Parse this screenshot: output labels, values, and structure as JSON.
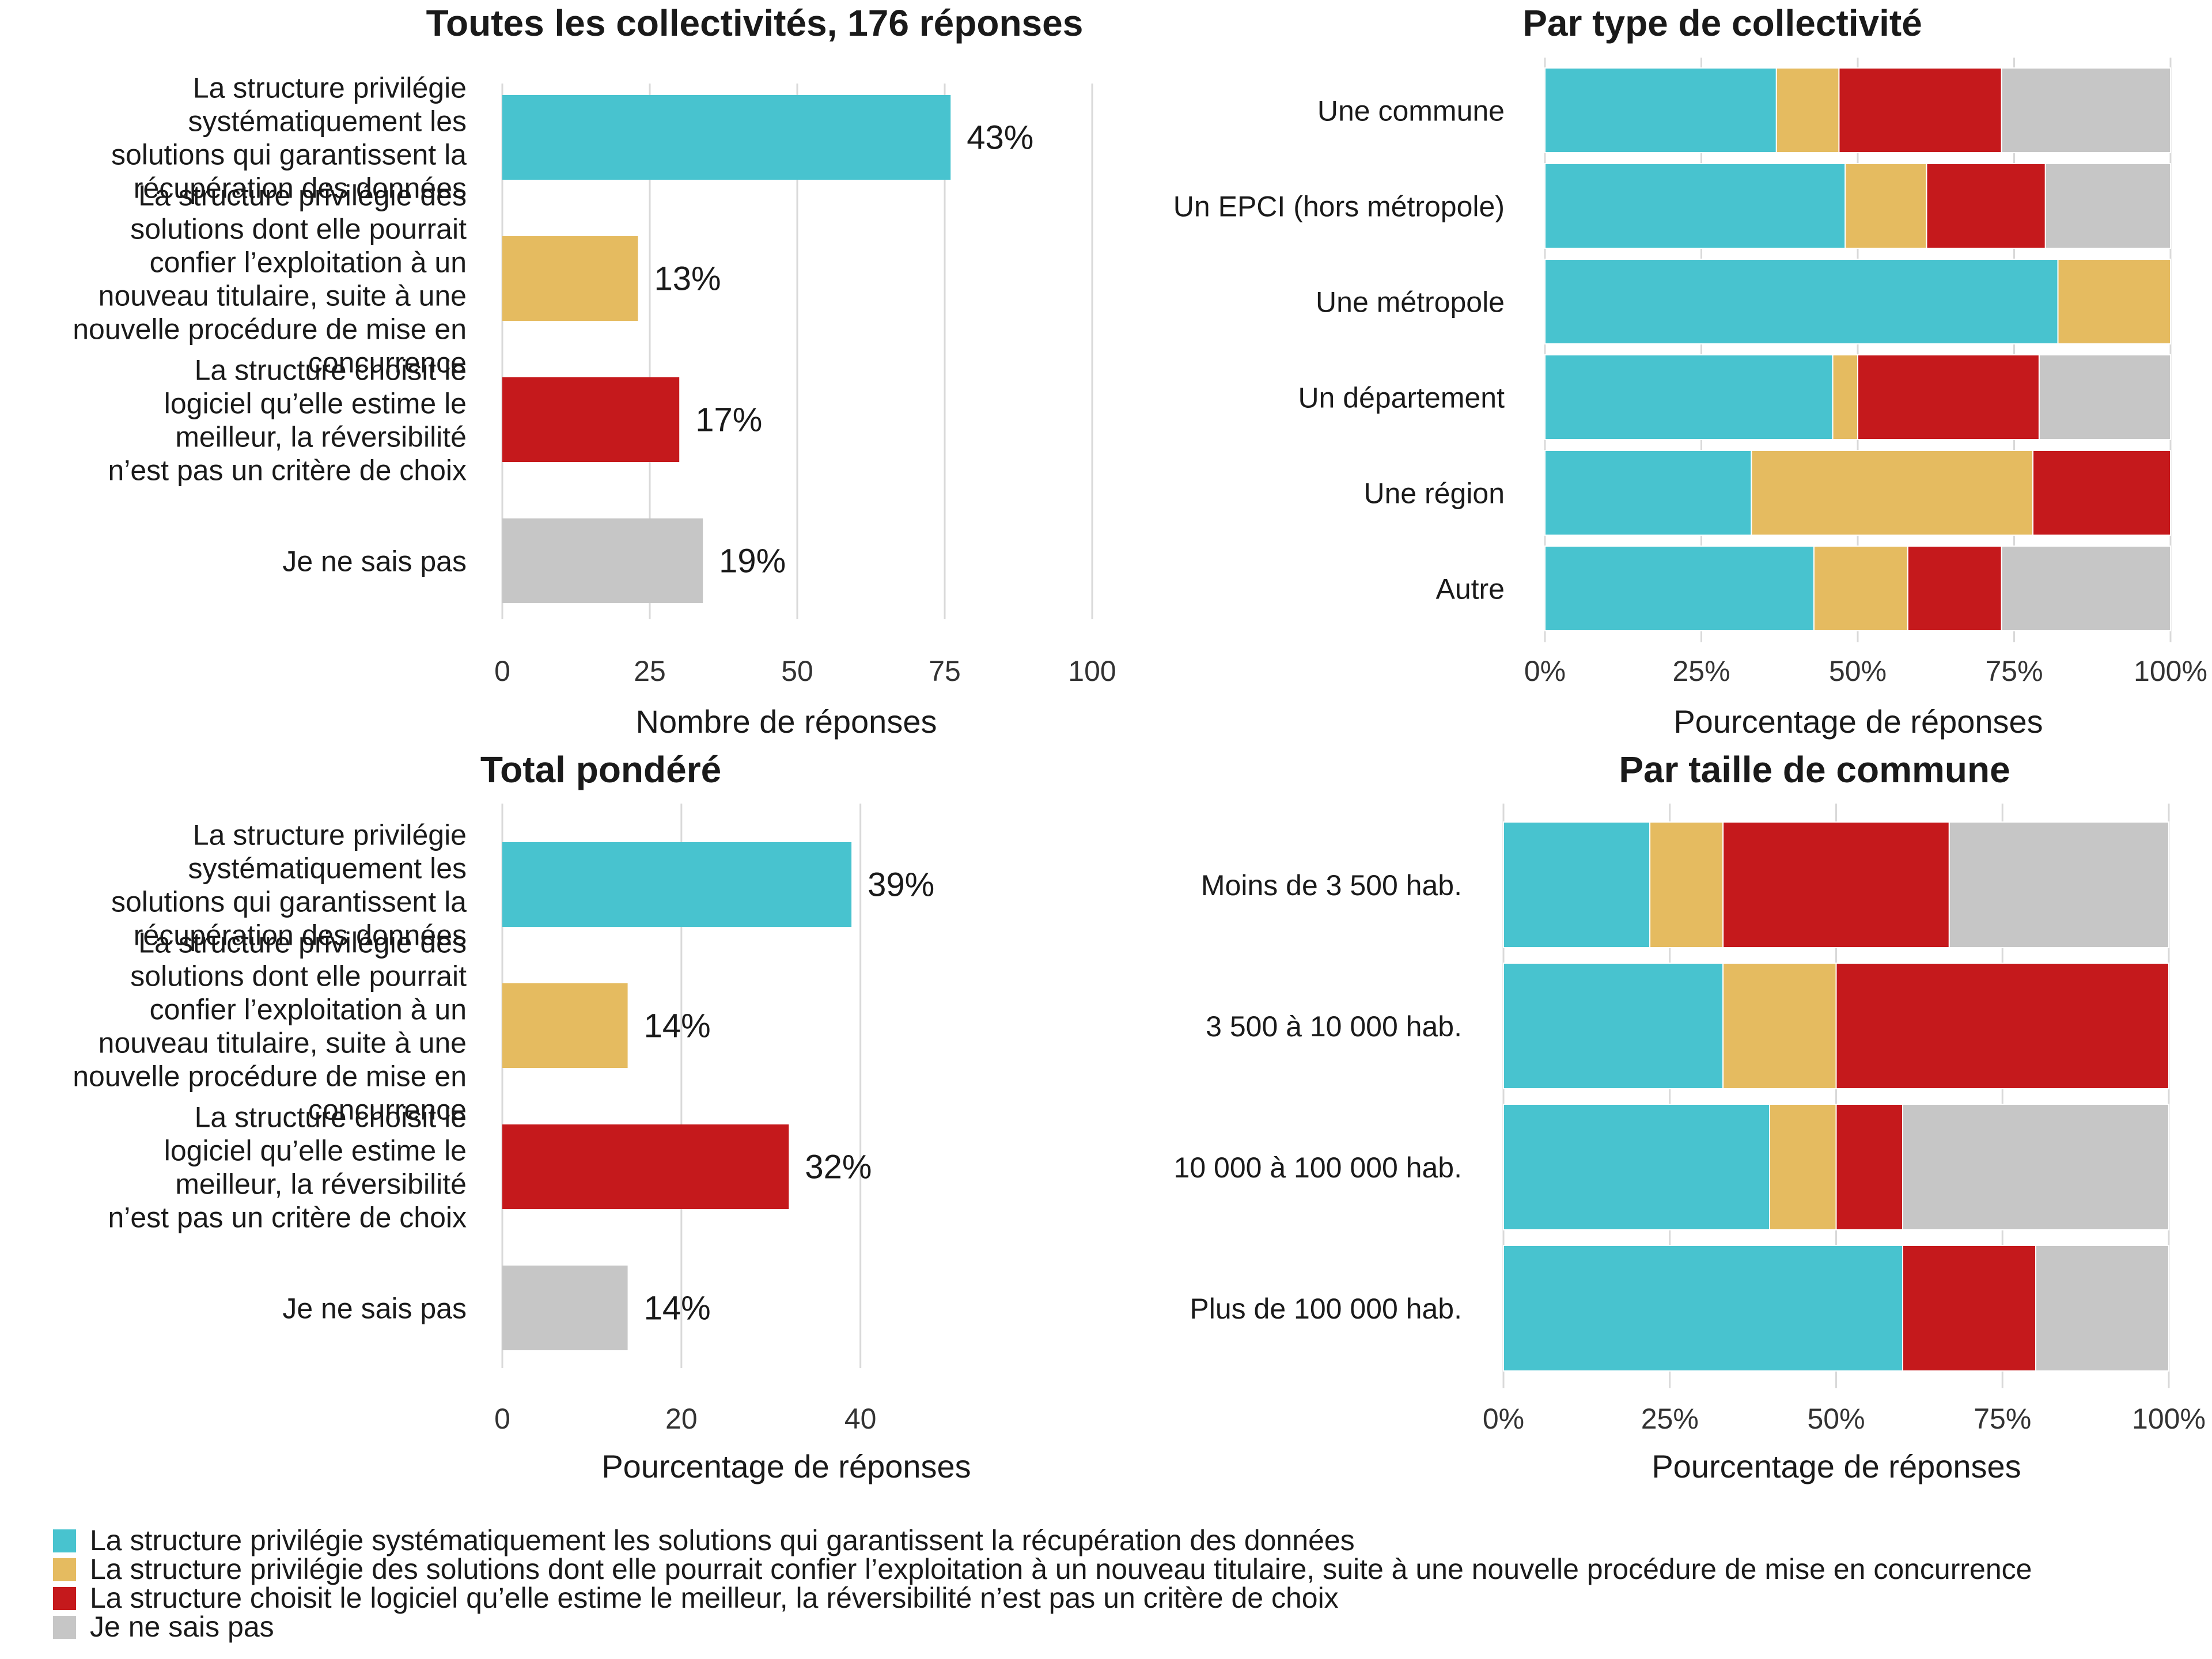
{
  "colors": {
    "recuperation": "#48c3cf",
    "concurrence": "#e5bb60",
    "meilleur": "#c5191c",
    "ne_sais_pas": "#c6c6c6"
  },
  "legend": {
    "items": [
      {
        "key": "recuperation",
        "label": "La structure privilégie systématiquement les solutions qui garantissent la récupération des données"
      },
      {
        "key": "concurrence",
        "label": "La structure privilégie des solutions dont elle pourrait confier l’exploitation à un nouveau titulaire, suite à une nouvelle procédure de mise en concurrence"
      },
      {
        "key": "meilleur",
        "label": "La structure choisit le logiciel qu’elle estime le meilleur, la réversibilité n’est pas un critère de choix"
      },
      {
        "key": "ne_sais_pas",
        "label": "Je ne sais pas"
      }
    ]
  },
  "chart_data": [
    {
      "id": "toutes",
      "type": "bar",
      "orientation": "horizontal",
      "title": "Toutes les collectivités, 176 réponses",
      "xlabel": "Nombre de réponses",
      "xlim": [
        0,
        100
      ],
      "xticks": [
        "0",
        "25",
        "50",
        "75",
        "100"
      ],
      "grid": true,
      "categories": [
        [
          "La structure privilégie",
          "systématiquement les",
          "solutions qui garantissent la",
          "récupération des données"
        ],
        [
          "La structure privilégie des",
          "solutions dont elle pourrait",
          "confier l’exploitation à un",
          "nouveau titulaire, suite à une",
          "nouvelle procédure de mise en",
          "concurrence"
        ],
        [
          "La structure choisit le",
          "logiciel qu’elle estime le",
          "meilleur, la réversibilité",
          "n’est pas un critère de choix"
        ],
        [
          "Je ne sais pas"
        ]
      ],
      "keys": [
        "recuperation",
        "concurrence",
        "meilleur",
        "ne_sais_pas"
      ],
      "values": [
        76,
        23,
        30,
        34
      ],
      "data_labels": [
        "43%",
        "13%",
        "17%",
        "19%"
      ]
    },
    {
      "id": "type",
      "type": "bar",
      "orientation": "horizontal",
      "stacked": "percent",
      "title": "Par type de collectivité",
      "xlabel": "Pourcentage de réponses",
      "xlim": [
        0,
        100
      ],
      "xticks": [
        "0%",
        "25%",
        "50%",
        "75%",
        "100%"
      ],
      "grid": true,
      "categories": [
        "Une commune",
        "Un EPCI (hors métropole)",
        "Une métropole",
        "Un département",
        "Une région",
        "Autre"
      ],
      "series": [
        {
          "key": "recuperation",
          "values": [
            37,
            48,
            82,
            46,
            33,
            43
          ]
        },
        {
          "key": "concurrence",
          "values": [
            10,
            13,
            18,
            4,
            45,
            15
          ]
        },
        {
          "key": "meilleur",
          "values": [
            26,
            19,
            0,
            29,
            22,
            15
          ]
        },
        {
          "key": "ne_sais_pas",
          "values": [
            27,
            20,
            0,
            21,
            0,
            27
          ]
        }
      ]
    },
    {
      "id": "pondere",
      "type": "bar",
      "orientation": "horizontal",
      "title": "Total pondéré",
      "xlabel": "Pourcentage de réponses",
      "xlim": [
        0,
        48
      ],
      "xticks": [
        "0",
        "20",
        "40"
      ],
      "grid": true,
      "categories": [
        [
          "La structure privilégie",
          "systématiquement les",
          "solutions qui garantissent la",
          "récupération des données"
        ],
        [
          "La structure privilégie des",
          "solutions dont elle pourrait",
          "confier l’exploitation à un",
          "nouveau titulaire, suite à une",
          "nouvelle procédure de mise en",
          "concurrence"
        ],
        [
          "La structure choisit le",
          "logiciel qu’elle estime le",
          "meilleur, la réversibilité",
          "n’est pas un critère de choix"
        ],
        [
          "Je ne sais pas"
        ]
      ],
      "keys": [
        "recuperation",
        "concurrence",
        "meilleur",
        "ne_sais_pas"
      ],
      "values": [
        39,
        14,
        32,
        14
      ],
      "data_labels": [
        "39%",
        "14%",
        "32%",
        "14%"
      ]
    },
    {
      "id": "taille",
      "type": "bar",
      "orientation": "horizontal",
      "stacked": "percent",
      "title": "Par taille de commune",
      "xlabel": "Pourcentage de réponses",
      "xlim": [
        0,
        100
      ],
      "xticks": [
        "0%",
        "25%",
        "50%",
        "75%",
        "100%"
      ],
      "grid": true,
      "categories": [
        "Moins de 3 500 hab.",
        "3 500 à 10 000 hab.",
        "10 000 à 100 000 hab.",
        "Plus de 100 000 hab."
      ],
      "series": [
        {
          "key": "recuperation",
          "values": [
            22,
            33,
            40,
            60
          ]
        },
        {
          "key": "concurrence",
          "values": [
            11,
            17,
            10,
            0
          ]
        },
        {
          "key": "meilleur",
          "values": [
            34,
            50,
            10,
            20
          ]
        },
        {
          "key": "ne_sais_pas",
          "values": [
            33,
            0,
            40,
            20
          ]
        }
      ]
    }
  ]
}
